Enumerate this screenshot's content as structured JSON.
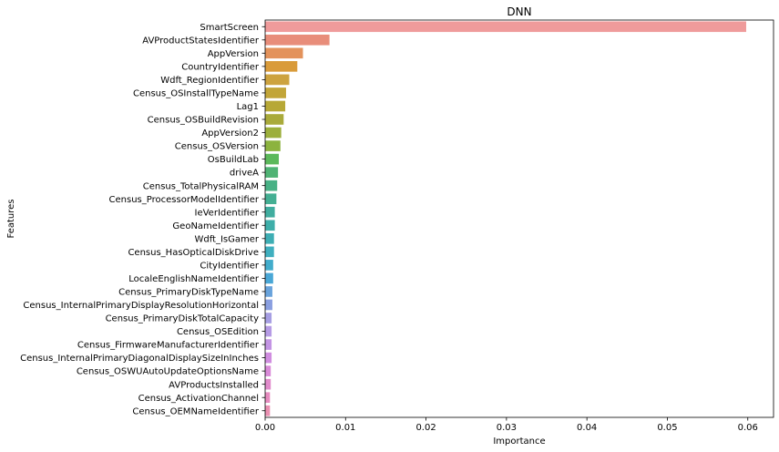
{
  "chart_data": {
    "type": "bar",
    "orientation": "horizontal",
    "title": "DNN",
    "xlabel": "Importance",
    "ylabel": "Features",
    "xlim": [
      0,
      0.0632
    ],
    "xticks": [
      0.0,
      0.01,
      0.02,
      0.03,
      0.04,
      0.05,
      0.06
    ],
    "xtick_labels": [
      "0.00",
      "0.01",
      "0.02",
      "0.03",
      "0.04",
      "0.05",
      "0.06"
    ],
    "grid": false,
    "legend": "none",
    "categories": [
      "SmartScreen",
      "AVProductStatesIdentifier",
      "AppVersion",
      "CountryIdentifier",
      "Wdft_RegionIdentifier",
      "Census_OSInstallTypeName",
      "Lag1",
      "Census_OSBuildRevision",
      "AppVersion2",
      "Census_OSVersion",
      "OsBuildLab",
      "driveA",
      "Census_TotalPhysicalRAM",
      "Census_ProcessorModelIdentifier",
      "IeVerIdentifier",
      "GeoNameIdentifier",
      "Wdft_IsGamer",
      "Census_HasOpticalDiskDrive",
      "CityIdentifier",
      "LocaleEnglishNameIdentifier",
      "Census_PrimaryDiskTypeName",
      "Census_InternalPrimaryDisplayResolutionHorizontal",
      "Census_PrimaryDiskTotalCapacity",
      "Census_OSEdition",
      "Census_FirmwareManufacturerIdentifier",
      "Census_InternalPrimaryDiagonalDisplaySizeInInches",
      "Census_OSWUAutoUpdateOptionsName",
      "AVProductsInstalled",
      "Census_ActivationChannel",
      "Census_OEMNameIdentifier"
    ],
    "values": [
      0.0598,
      0.008,
      0.0047,
      0.004,
      0.003,
      0.0026,
      0.0025,
      0.0023,
      0.002,
      0.0019,
      0.0017,
      0.0016,
      0.0015,
      0.0014,
      0.0012,
      0.0012,
      0.0011,
      0.0011,
      0.001,
      0.001,
      0.0009,
      0.0009,
      0.0008,
      0.0008,
      0.0008,
      0.0008,
      0.0007,
      0.0007,
      0.0006,
      0.0006
    ],
    "colors": [
      "#ef9b9b",
      "#e88d7a",
      "#e3925b",
      "#d99b3a",
      "#cda33f",
      "#c2a538",
      "#b7a836",
      "#a9aa3a",
      "#9caf3b",
      "#8cb33f",
      "#5cb95b",
      "#4fb374",
      "#48b185",
      "#44af93",
      "#40ad9f",
      "#3eaea9",
      "#3eaeb4",
      "#3fafbf",
      "#42accb",
      "#49a7d6",
      "#69a3dc",
      "#8a9fe0",
      "#a69ee3",
      "#b69be5",
      "#c394e4",
      "#d08de0",
      "#d98ad8",
      "#e18bcb",
      "#e68bbf",
      "#ea8fb1"
    ]
  }
}
